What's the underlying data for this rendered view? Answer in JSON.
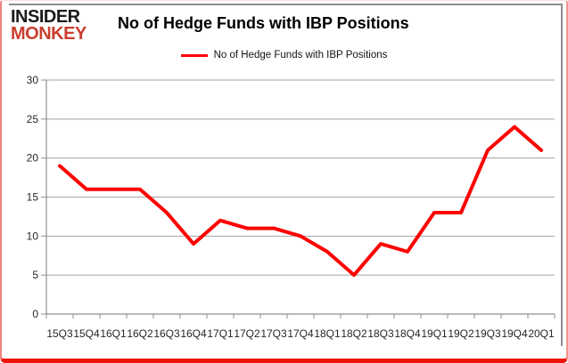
{
  "logo": {
    "line1": "INSIDER",
    "line2": "MONKEY",
    "line1_color": "#1b1b1b",
    "line2_color": "#ca3e2e"
  },
  "header": {
    "title": "No of Hedge Funds with IBP Positions"
  },
  "legend": {
    "label": "No of Hedge Funds with IBP Positions",
    "swatch_color": "#fe0000"
  },
  "chart_data": {
    "type": "line",
    "title": "No of Hedge Funds with IBP Positions",
    "categories": [
      "15Q3",
      "15Q4",
      "16Q1",
      "16Q2",
      "16Q3",
      "16Q4",
      "17Q1",
      "17Q2",
      "17Q3",
      "17Q4",
      "18Q1",
      "18Q2",
      "18Q3",
      "18Q4",
      "19Q1",
      "19Q2",
      "19Q3",
      "19Q4",
      "20Q1"
    ],
    "series": [
      {
        "name": "No of Hedge Funds with IBP Positions",
        "color": "#fe0000",
        "values": [
          19,
          16,
          16,
          16,
          13,
          9,
          12,
          11,
          11,
          10,
          8,
          5,
          9,
          8,
          13,
          13,
          21,
          24,
          21
        ]
      }
    ],
    "xlabel": "",
    "ylabel": "",
    "ylim": [
      0,
      30
    ],
    "ytick_interval": 5,
    "grid": true,
    "legend_position": "top"
  },
  "style": {
    "grid_color": "#a3a3a3",
    "axis_color": "#8f8f8f",
    "label_color": "#262626",
    "line_width": 4,
    "frame_red": "#ec1408"
  }
}
